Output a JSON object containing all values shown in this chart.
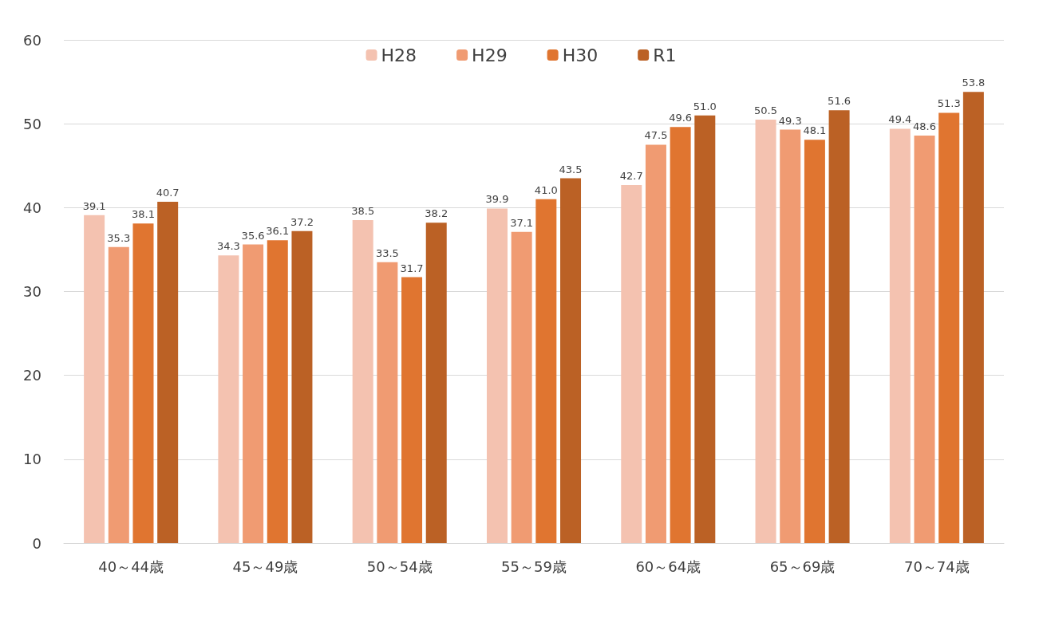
{
  "chart_data": {
    "type": "bar",
    "categories": [
      "40～44歳",
      "45～49歳",
      "50～54歳",
      "55～59歳",
      "60～64歳",
      "65～69歳",
      "70～74歳"
    ],
    "series": [
      {
        "name": "H28",
        "color": "#f4c2b0",
        "values": [
          39.1,
          34.3,
          38.5,
          39.9,
          42.7,
          50.5,
          49.4
        ],
        "value_labels": [
          "39.1",
          "34.3",
          "38.5",
          "39.9",
          "42.7",
          "50.5",
          "49.4"
        ]
      },
      {
        "name": "H29",
        "color": "#f09b72",
        "values": [
          35.3,
          35.6,
          33.5,
          37.1,
          47.5,
          49.3,
          48.6
        ],
        "value_labels": [
          "35.3",
          "35.6",
          "33.5",
          "37.1",
          "47.5",
          "49.3",
          "48.6"
        ]
      },
      {
        "name": "H30",
        "color": "#e07530",
        "values": [
          38.1,
          36.1,
          31.7,
          41.0,
          49.6,
          48.1,
          51.3
        ],
        "value_labels": [
          "38.1",
          "36.1",
          "31.7",
          "41.0",
          "49.6",
          "48.1",
          "51.3"
        ]
      },
      {
        "name": "R1",
        "color": "#bb6125",
        "values": [
          40.7,
          37.2,
          38.2,
          43.5,
          51.0,
          51.6,
          53.8
        ],
        "value_labels": [
          "40.7",
          "37.2",
          "38.2",
          "43.5",
          "51.0",
          "51.6",
          "53.8"
        ]
      }
    ],
    "ylim": [
      0,
      60
    ],
    "yticks": [
      0,
      10,
      20,
      30,
      40,
      50,
      60
    ],
    "grid": "y",
    "legend": "top"
  }
}
